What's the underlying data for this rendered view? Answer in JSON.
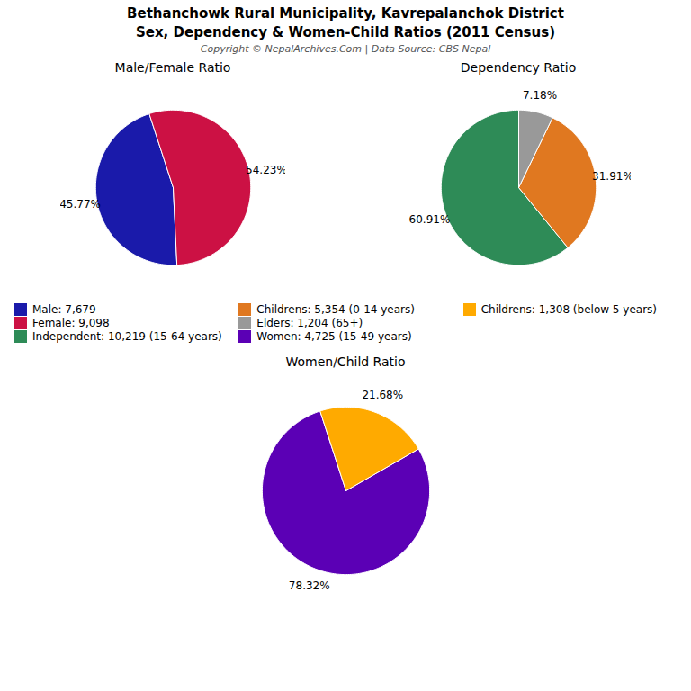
{
  "title": "Bethanchowk Rural Municipality, Kavrepalanchok District",
  "subtitle": "Sex, Dependency & Women-Child Ratios (2011 Census)",
  "annotations": [
    "Copyright © NepalArchives.Com | Data Source: CBS Nepal"
  ],
  "chart_data": [
    {
      "type": "pie",
      "title": "Male/Female Ratio",
      "categories": [
        "Male: 7,679",
        "Female: 9,098"
      ],
      "values": [
        45.77,
        54.23
      ],
      "value_labels": [
        "45.77%",
        "54.23%"
      ],
      "colors": [
        "#1a1aaa",
        "#cc1144"
      ],
      "data_labels": true,
      "legend": true
    },
    {
      "type": "pie",
      "title": "Dependency Ratio",
      "categories": [
        "Independent: 10,219 (15-64 years)",
        "Childrens: 5,354 (0-14 years)",
        "Elders: 1,204 (65+)"
      ],
      "values": [
        60.91,
        31.91,
        7.18
      ],
      "value_labels": [
        "60.91%",
        "31.91%",
        "7.18%"
      ],
      "colors": [
        "#2e8b57",
        "#e07820",
        "#999999"
      ],
      "data_labels": true,
      "legend": true
    },
    {
      "type": "pie",
      "title": "Women/Child Ratio",
      "categories": [
        "Women: 4,725 (15-49 years)",
        "Childrens: 1,308 (below 5 years)"
      ],
      "values": [
        78.32,
        21.68
      ],
      "value_labels": [
        "78.32%",
        "21.68%"
      ],
      "colors": [
        "#5b00b5",
        "#ffaa00"
      ],
      "data_labels": true,
      "legend": true
    }
  ]
}
